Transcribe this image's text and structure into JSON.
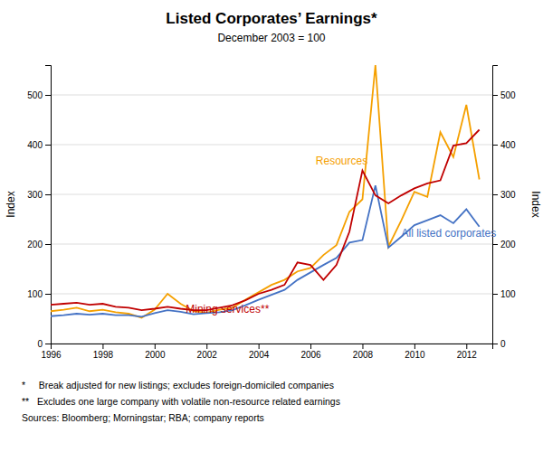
{
  "chart_data": {
    "type": "line",
    "title": "Listed Corporates’ Earnings*",
    "subtitle": "December 2003 = 100",
    "ylabel": "Index",
    "y2label": "Index",
    "xlim": [
      1996,
      2013
    ],
    "xticks": [
      1996,
      1998,
      2000,
      2002,
      2004,
      2006,
      2008,
      2010,
      2012
    ],
    "ylim": [
      0,
      560
    ],
    "yticks": [
      0,
      100,
      200,
      300,
      400,
      500
    ],
    "y2lim": [
      0,
      560
    ],
    "y2ticks": [
      0,
      100,
      200,
      300,
      400,
      500
    ],
    "grid": true,
    "x": [
      1996.0,
      1996.5,
      1997.0,
      1997.5,
      1998.0,
      1998.5,
      1999.0,
      1999.5,
      2000.0,
      2000.5,
      2001.0,
      2001.5,
      2002.0,
      2002.5,
      2003.0,
      2003.5,
      2004.0,
      2004.5,
      2005.0,
      2005.5,
      2006.0,
      2006.5,
      2007.0,
      2007.5,
      2008.0,
      2008.5,
      2009.0,
      2009.5,
      2010.0,
      2010.5,
      2011.0,
      2011.5,
      2012.0,
      2012.5
    ],
    "series": [
      {
        "color": "#F5A000",
        "values": [
          65,
          68,
          72,
          65,
          68,
          63,
          60,
          52,
          68,
          100,
          80,
          65,
          62,
          68,
          72,
          88,
          103,
          118,
          128,
          145,
          152,
          178,
          198,
          265,
          290,
          560,
          195,
          248,
          305,
          295,
          425,
          375,
          480,
          330
        ]
      },
      {
        "color": "#4472C4",
        "values": [
          55,
          57,
          60,
          58,
          60,
          57,
          57,
          54,
          61,
          67,
          64,
          59,
          61,
          63,
          67,
          77,
          88,
          98,
          108,
          128,
          143,
          158,
          172,
          203,
          208,
          318,
          193,
          215,
          238,
          248,
          258,
          242,
          270,
          235
        ]
      },
      {
        "color": "#C00000",
        "values": [
          78,
          80,
          82,
          78,
          80,
          74,
          72,
          67,
          70,
          74,
          70,
          67,
          67,
          72,
          77,
          87,
          100,
          108,
          118,
          163,
          158,
          128,
          158,
          225,
          348,
          298,
          282,
          298,
          312,
          322,
          328,
          398,
          403,
          430
        ]
      }
    ],
    "annotations": [
      {
        "text": "Resources",
        "x": 2006.2,
        "y": 355,
        "color": "#F5A000"
      },
      {
        "text": "All listed corporates",
        "x": 2009.5,
        "y": 210,
        "color": "#4472C4"
      },
      {
        "text": "Mining services**",
        "x": 2001.2,
        "y": 56,
        "color": "#C00000"
      }
    ],
    "footnotes": [
      "*     Break adjusted for new listings; excludes foreign-domiciled companies",
      "**   Excludes one large company with volatile non-resource related earnings",
      "Sources: Bloomberg; Morningstar; RBA; company reports"
    ]
  }
}
